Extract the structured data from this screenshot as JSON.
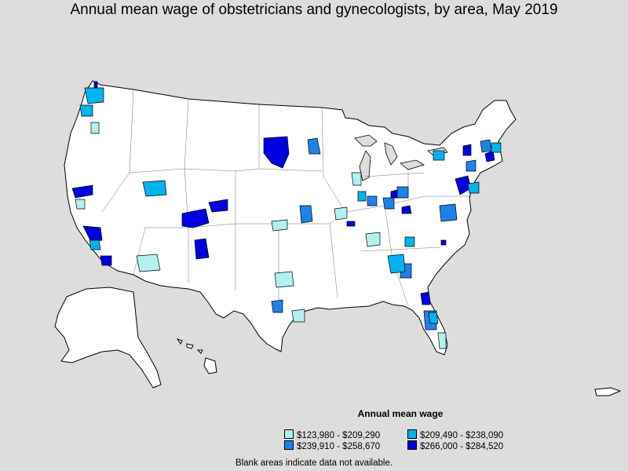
{
  "title": "Annual mean wage of obstetricians and gynecologists, by area, May 2019",
  "legend": {
    "title": "Annual mean wage",
    "items": [
      {
        "label": "$123,980 - $209,290",
        "color": "#b3f0f0"
      },
      {
        "label": "$209,490 - $238,090",
        "color": "#00b4ee"
      },
      {
        "label": "$239,910 - $258,670",
        "color": "#1f82e8"
      },
      {
        "label": "$266,000 - $284,520",
        "color": "#0000e0"
      }
    ]
  },
  "footnote": "Blank areas indicate data not available.",
  "colors": {
    "background": "#dddddd",
    "land": "#ffffff",
    "border": "#000000"
  }
}
